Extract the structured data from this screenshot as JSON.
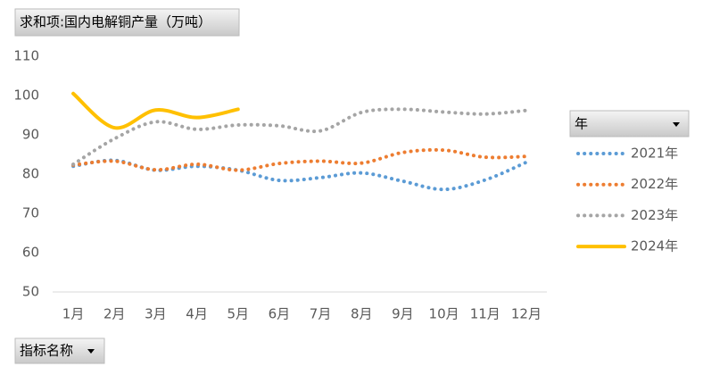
{
  "chart_data": {
    "type": "line",
    "title": "求和项:国内电解铜产量（万吨）",
    "legend_title": "年",
    "x_field": "指标名称",
    "categories": [
      "1月",
      "2月",
      "3月",
      "4月",
      "5月",
      "6月",
      "7月",
      "8月",
      "9月",
      "10月",
      "11月",
      "12月"
    ],
    "series": [
      {
        "name": "2021年",
        "color": "#5b9bd5",
        "style": "dotted",
        "values": [
          82,
          83.5,
          81,
          82,
          81,
          78.4,
          79.1,
          80.3,
          78.2,
          76.1,
          78.5,
          83
        ]
      },
      {
        "name": "2022年",
        "color": "#ed7d31",
        "style": "dotted",
        "values": [
          82.3,
          83.3,
          81.1,
          82.5,
          81,
          82.7,
          83.3,
          82.8,
          85.5,
          86.1,
          84.3,
          84.5
        ]
      },
      {
        "name": "2023年",
        "color": "#a5a5a5",
        "style": "dotted",
        "values": [
          82.5,
          89,
          93.3,
          91.4,
          92.5,
          92.3,
          91,
          95.7,
          96.5,
          95.8,
          95.3,
          96.2
        ]
      },
      {
        "name": "2024年",
        "color": "#ffc000",
        "style": "solid",
        "values": [
          100.5,
          91.8,
          96.3,
          94.4,
          96.5,
          null,
          null,
          null,
          null,
          null,
          null,
          null
        ]
      }
    ],
    "ylim": [
      50,
      110
    ],
    "yticks": [
      50,
      60,
      70,
      80,
      90,
      100,
      110
    ],
    "grid": false,
    "legend": "right"
  }
}
